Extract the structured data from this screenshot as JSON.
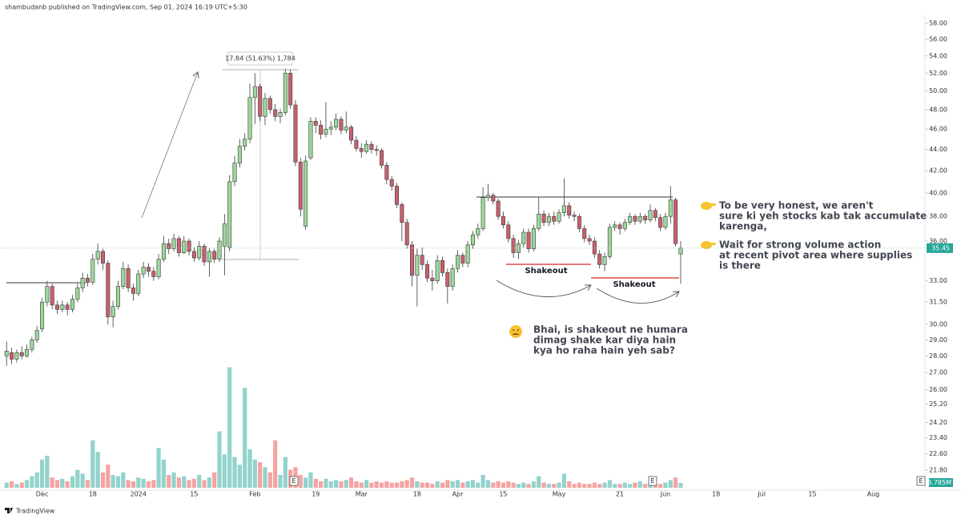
{
  "header": "shambudanb published on TradingView.com, Sep 01, 2024 16:19 UTC+5:30",
  "footer": "TradingView",
  "chart_data": {
    "type": "candlestick",
    "ylim": [
      20.87,
      59.13
    ],
    "log_scale": true,
    "grid": false,
    "xlim": [
      -1.3,
      181.2
    ],
    "yticks": [
      {
        "value": 58,
        "label": "58.00"
      },
      {
        "value": 56,
        "label": "56.00"
      },
      {
        "value": 54,
        "label": "54.00"
      },
      {
        "value": 52,
        "label": "52.00"
      },
      {
        "value": 50,
        "label": "50.00"
      },
      {
        "value": 48,
        "label": "48.00"
      },
      {
        "value": 46,
        "label": "46.00"
      },
      {
        "value": 44,
        "label": "44.00"
      },
      {
        "value": 42,
        "label": "42.00"
      },
      {
        "value": 40,
        "label": "40.00"
      },
      {
        "value": 38,
        "label": "38.00"
      },
      {
        "value": 36,
        "label": "36.00"
      },
      {
        "value": 33,
        "label": "33.00"
      },
      {
        "value": 31.5,
        "label": "31.50"
      },
      {
        "value": 30,
        "label": "30.00"
      },
      {
        "value": 29,
        "label": "29.00"
      },
      {
        "value": 28,
        "label": "28.00"
      },
      {
        "value": 27,
        "label": "27.00"
      },
      {
        "value": 26,
        "label": "26.00"
      },
      {
        "value": 25.2,
        "label": "25.20"
      },
      {
        "value": 24.2,
        "label": "24.20"
      },
      {
        "value": 23.4,
        "label": "23.40"
      },
      {
        "value": 22.6,
        "label": "22.60"
      },
      {
        "value": 21.8,
        "label": "21.80"
      }
    ],
    "xticks": [
      {
        "value": 7,
        "label": "Dec"
      },
      {
        "value": 17,
        "label": "18"
      },
      {
        "value": 26,
        "label": "2024"
      },
      {
        "value": 37,
        "label": "15"
      },
      {
        "value": 49,
        "label": "Feb"
      },
      {
        "value": 61,
        "label": "19"
      },
      {
        "value": 70,
        "label": "Mar"
      },
      {
        "value": 81,
        "label": "18"
      },
      {
        "value": 89,
        "label": "Apr"
      },
      {
        "value": 98,
        "label": "15"
      },
      {
        "value": 109,
        "label": "May"
      },
      {
        "value": 121,
        "label": "21"
      },
      {
        "value": 130,
        "label": "Jun"
      },
      {
        "value": 140,
        "label": "18"
      },
      {
        "value": 149,
        "label": "Jul"
      },
      {
        "value": 159,
        "label": "15"
      },
      {
        "value": 171,
        "label": "Aug"
      }
    ],
    "up_color": "#9bd89b",
    "down_color": "#c8606e",
    "volume_up_color": "#92d3cc",
    "volume_down_color": "#f5a3a3",
    "candles": [
      [
        28.0,
        28.9,
        27.4,
        28.3
      ],
      [
        28.2,
        28.5,
        27.5,
        27.8
      ],
      [
        27.8,
        28.4,
        27.6,
        28.2
      ],
      [
        28.2,
        28.6,
        27.8,
        28.0
      ],
      [
        28.0,
        28.7,
        27.9,
        28.4
      ],
      [
        28.4,
        29.2,
        28.2,
        29.0
      ],
      [
        29.0,
        29.9,
        28.8,
        29.6
      ],
      [
        29.7,
        31.8,
        29.5,
        31.5
      ],
      [
        31.5,
        33.0,
        31.2,
        32.6
      ],
      [
        32.6,
        32.8,
        31.0,
        31.3
      ],
      [
        31.3,
        31.6,
        30.7,
        31.0
      ],
      [
        31.0,
        31.6,
        30.8,
        31.3
      ],
      [
        31.3,
        31.5,
        30.6,
        31.0
      ],
      [
        31.0,
        32.0,
        30.8,
        31.7
      ],
      [
        31.7,
        32.8,
        31.5,
        32.5
      ],
      [
        32.5,
        33.6,
        32.2,
        33.2
      ],
      [
        33.2,
        33.5,
        32.6,
        32.9
      ],
      [
        32.9,
        35.0,
        32.7,
        34.6
      ],
      [
        34.6,
        35.8,
        34.2,
        35.2
      ],
      [
        35.2,
        35.4,
        33.8,
        34.3
      ],
      [
        34.3,
        34.5,
        30.0,
        30.5
      ],
      [
        30.5,
        31.6,
        29.8,
        31.2
      ],
      [
        31.2,
        33.0,
        31.0,
        32.6
      ],
      [
        32.6,
        34.4,
        32.4,
        33.9
      ],
      [
        33.9,
        34.2,
        32.2,
        32.5
      ],
      [
        32.5,
        32.8,
        31.6,
        32.1
      ],
      [
        32.1,
        33.8,
        31.9,
        33.5
      ],
      [
        33.5,
        34.4,
        33.2,
        34.0
      ],
      [
        34.0,
        34.3,
        33.3,
        33.7
      ],
      [
        33.7,
        34.0,
        33.0,
        33.3
      ],
      [
        33.3,
        35.0,
        33.1,
        34.6
      ],
      [
        34.6,
        36.4,
        34.4,
        35.8
      ],
      [
        35.8,
        36.2,
        35.0,
        35.4
      ],
      [
        35.4,
        36.6,
        35.2,
        36.2
      ],
      [
        36.2,
        36.4,
        34.8,
        35.1
      ],
      [
        35.1,
        36.4,
        35.0,
        36.0
      ],
      [
        36.0,
        36.2,
        34.9,
        35.2
      ],
      [
        35.2,
        35.5,
        34.4,
        34.7
      ],
      [
        34.7,
        36.0,
        34.5,
        35.6
      ],
      [
        35.6,
        35.8,
        34.1,
        34.4
      ],
      [
        34.4,
        35.5,
        33.3,
        35.2
      ],
      [
        35.2,
        35.4,
        34.3,
        34.6
      ],
      [
        34.6,
        36.3,
        34.4,
        36.0
      ],
      [
        35.6,
        38.2,
        33.4,
        37.4
      ],
      [
        35.5,
        41.6,
        35.2,
        41.0
      ],
      [
        41.0,
        43.4,
        40.6,
        42.7
      ],
      [
        42.7,
        45.0,
        42.3,
        44.3
      ],
      [
        44.3,
        45.6,
        43.9,
        45.0
      ],
      [
        45.0,
        50.8,
        44.6,
        49.3
      ],
      [
        49.3,
        52.0,
        46.5,
        50.5
      ],
      [
        50.5,
        50.8,
        46.8,
        47.3
      ],
      [
        47.3,
        49.8,
        46.4,
        49.2
      ],
      [
        49.2,
        49.5,
        47.6,
        48.0
      ],
      [
        48.0,
        48.6,
        46.8,
        47.3
      ],
      [
        47.3,
        48.1,
        46.6,
        47.7
      ],
      [
        47.7,
        52.5,
        47.4,
        52.0
      ],
      [
        52.0,
        52.4,
        48.1,
        48.5
      ],
      [
        48.5,
        49.0,
        42.4,
        42.8
      ],
      [
        42.8,
        43.2,
        38.0,
        38.6
      ],
      [
        37.2,
        43.4,
        36.9,
        42.9
      ],
      [
        43.2,
        47.2,
        43.0,
        46.8
      ],
      [
        46.8,
        47.2,
        45.6,
        46.4
      ],
      [
        46.4,
        46.9,
        45.0,
        45.5
      ],
      [
        45.5,
        48.8,
        45.2,
        46.0
      ],
      [
        46.0,
        46.8,
        45.4,
        46.2
      ],
      [
        46.2,
        47.6,
        45.9,
        47.0
      ],
      [
        47.0,
        47.3,
        45.5,
        45.9
      ],
      [
        45.9,
        47.8,
        45.6,
        46.2
      ],
      [
        46.2,
        46.4,
        44.5,
        44.9
      ],
      [
        44.9,
        45.3,
        43.8,
        44.1
      ],
      [
        44.1,
        44.6,
        43.2,
        43.8
      ],
      [
        43.8,
        44.9,
        43.6,
        44.5
      ],
      [
        44.5,
        44.8,
        43.6,
        44.0
      ],
      [
        44.0,
        44.4,
        43.4,
        43.9
      ],
      [
        43.9,
        44.1,
        42.2,
        42.5
      ],
      [
        42.5,
        42.8,
        40.8,
        41.2
      ],
      [
        41.2,
        41.5,
        40.2,
        40.6
      ],
      [
        40.6,
        40.9,
        38.7,
        39.0
      ],
      [
        39.0,
        39.2,
        36.0,
        37.5
      ],
      [
        37.5,
        37.8,
        35.4,
        35.7
      ],
      [
        35.7,
        36.0,
        32.6,
        33.4
      ],
      [
        33.4,
        35.4,
        31.2,
        34.9
      ],
      [
        34.9,
        35.5,
        33.8,
        34.2
      ],
      [
        34.2,
        34.5,
        32.9,
        33.2
      ],
      [
        33.2,
        33.8,
        32.3,
        33.0
      ],
      [
        33.0,
        34.9,
        32.8,
        34.5
      ],
      [
        34.5,
        34.8,
        33.3,
        33.6
      ],
      [
        33.6,
        33.9,
        31.4,
        32.6
      ],
      [
        32.6,
        34.2,
        32.3,
        33.9
      ],
      [
        33.9,
        35.3,
        33.6,
        34.9
      ],
      [
        34.9,
        35.1,
        34.0,
        34.3
      ],
      [
        34.3,
        36.0,
        34.0,
        35.7
      ],
      [
        35.7,
        36.8,
        35.4,
        36.5
      ],
      [
        36.5,
        37.4,
        36.2,
        37.0
      ],
      [
        37.0,
        40.5,
        36.8,
        39.6
      ],
      [
        39.6,
        40.8,
        39.3,
        39.8
      ],
      [
        39.8,
        40.0,
        39.0,
        39.3
      ],
      [
        39.3,
        39.5,
        37.7,
        38.0
      ],
      [
        38.0,
        38.4,
        37.0,
        37.3
      ],
      [
        37.3,
        37.6,
        35.9,
        36.2
      ],
      [
        36.2,
        36.5,
        34.7,
        35.1
      ],
      [
        35.1,
        36.1,
        34.6,
        35.8
      ],
      [
        35.8,
        37.0,
        35.5,
        36.7
      ],
      [
        36.7,
        37.0,
        35.1,
        35.4
      ],
      [
        35.4,
        37.3,
        35.2,
        37.0
      ],
      [
        37.0,
        39.6,
        36.8,
        38.2
      ],
      [
        38.2,
        38.5,
        37.2,
        37.5
      ],
      [
        37.5,
        38.3,
        37.2,
        38.0
      ],
      [
        38.0,
        38.4,
        37.3,
        37.6
      ],
      [
        37.6,
        38.6,
        37.4,
        38.3
      ],
      [
        38.3,
        41.3,
        38.0,
        38.9
      ],
      [
        38.9,
        39.2,
        37.8,
        38.1
      ],
      [
        38.1,
        38.4,
        37.6,
        38.0
      ],
      [
        38.0,
        38.2,
        36.7,
        37.0
      ],
      [
        37.0,
        37.3,
        35.9,
        36.2
      ],
      [
        36.2,
        36.5,
        35.7,
        36.0
      ],
      [
        36.0,
        36.3,
        34.7,
        35.0
      ],
      [
        35.0,
        35.3,
        33.9,
        34.2
      ],
      [
        34.2,
        35.1,
        33.7,
        34.8
      ],
      [
        34.8,
        37.4,
        34.6,
        37.1
      ],
      [
        37.1,
        37.6,
        36.8,
        37.3
      ],
      [
        37.3,
        37.5,
        36.5,
        37.0
      ],
      [
        37.0,
        37.8,
        36.8,
        37.5
      ],
      [
        37.5,
        38.3,
        37.3,
        38.0
      ],
      [
        38.0,
        38.2,
        37.3,
        37.6
      ],
      [
        37.6,
        38.3,
        37.4,
        38.0
      ],
      [
        38.0,
        38.2,
        37.4,
        37.7
      ],
      [
        37.7,
        39.0,
        37.5,
        38.5
      ],
      [
        38.5,
        38.7,
        37.6,
        37.9
      ],
      [
        37.9,
        38.2,
        36.8,
        37.1
      ],
      [
        37.1,
        38.3,
        36.9,
        38.0
      ],
      [
        38.0,
        40.6,
        37.4,
        39.4
      ],
      [
        39.4,
        39.6,
        35.6,
        35.8
      ],
      [
        35.0,
        36.0,
        32.8,
        35.45
      ]
    ],
    "volume": [
      4,
      5,
      3,
      4,
      6,
      9,
      12,
      22,
      25,
      8,
      6,
      7,
      5,
      9,
      14,
      11,
      6,
      37,
      28,
      12,
      18,
      10,
      9,
      12,
      6,
      5,
      8,
      7,
      5,
      6,
      31,
      22,
      10,
      12,
      8,
      9,
      6,
      7,
      10,
      6,
      8,
      12,
      44,
      26,
      94,
      24,
      18,
      78,
      30,
      22,
      20,
      16,
      12,
      37,
      10,
      24,
      14,
      16,
      10,
      8,
      12,
      7,
      5,
      7,
      5,
      6,
      5,
      6,
      8,
      5,
      4,
      6,
      4,
      5,
      4,
      5,
      4,
      4,
      5,
      6,
      8,
      5,
      4,
      4,
      3,
      5,
      4,
      6,
      5,
      6,
      4,
      5,
      6,
      4,
      10,
      6,
      4,
      5,
      4,
      5,
      4,
      3,
      4,
      3,
      5,
      9,
      4,
      3,
      3,
      4,
      11,
      5,
      3,
      4,
      3,
      3,
      4,
      3,
      4,
      6,
      3,
      3,
      4,
      3,
      4,
      5,
      3,
      6,
      3,
      3,
      4,
      6,
      8,
      3.785
    ],
    "volume_lim": [
      0,
      200
    ],
    "last_price": 35.45,
    "last_volume_label": "3.785M",
    "earnings_marker": "E",
    "measure_label": "17.84 (51.63%) 1,784",
    "shakeout_labels": [
      "Shakeout",
      "Shakeout"
    ],
    "annotations": [
      {
        "lines": [
          "To be very honest, we aren't",
          "sure ki yeh stocks kab tak accumulate",
          "karenga,"
        ]
      },
      {
        "lines": [
          "Wait for strong volume action",
          "at recent pivot area where supplies",
          "is there"
        ]
      },
      {
        "lines": [
          "Bhai, is shakeout ne humara",
          "dimag shake kar diya hain",
          "kya ho raha hain yeh sab?"
        ]
      }
    ]
  }
}
